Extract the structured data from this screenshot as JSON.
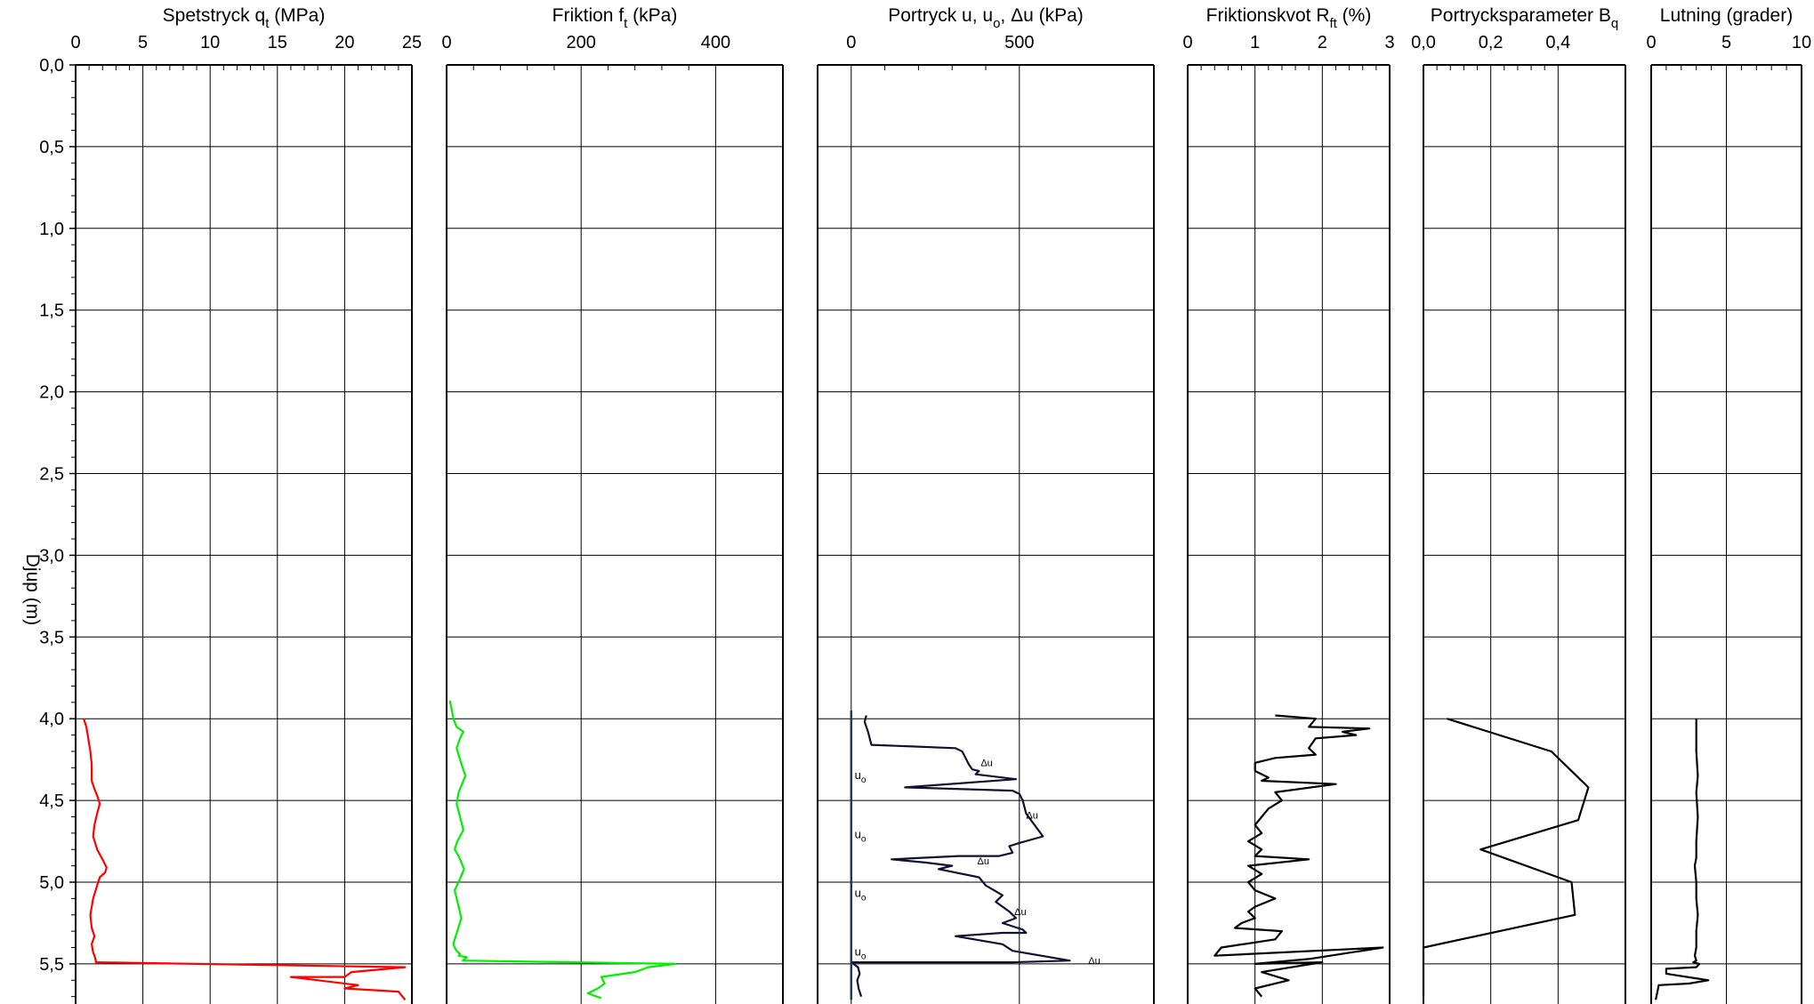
{
  "depth_axis": {
    "label": "Djup (m)",
    "ylim": [
      0,
      5.72
    ],
    "ticks": [
      "0,0",
      "0,5",
      "1,0",
      "1,5",
      "2,0",
      "2,5",
      "3,0",
      "3,5",
      "4,0",
      "4,5",
      "5,0",
      "5,5"
    ]
  },
  "chart_data": [
    {
      "type": "line",
      "title": "Spetstryck qt (MPa)",
      "title_main": "Spetstryck q",
      "title_sub": "t",
      "title_tail": "  (MPa)",
      "xlim": [
        0,
        25
      ],
      "xticks": [
        "0",
        "5",
        "10",
        "15",
        "20",
        "25"
      ],
      "color": "#ff0000",
      "grid": true,
      "series": [
        {
          "x": [
            0.6,
            0.8,
            0.9,
            1.1,
            1.2,
            1.2,
            1.4,
            1.6,
            1.8,
            1.6,
            1.4,
            1.3,
            1.6,
            2.0,
            2.3,
            2.2,
            1.8,
            1.6,
            1.3,
            1.1,
            1.2,
            1.4,
            1.2,
            1.3,
            1.4,
            1.5,
            1.5,
            24.5,
            20.5,
            20.0,
            16.0,
            18.0,
            21.0,
            20.0,
            24.0,
            24.5
          ],
          "y": [
            4.0,
            4.05,
            4.1,
            4.2,
            4.28,
            4.38,
            4.43,
            4.47,
            4.52,
            4.58,
            4.65,
            4.72,
            4.8,
            4.86,
            4.91,
            4.94,
            4.97,
            5.02,
            5.1,
            5.2,
            5.28,
            5.33,
            5.38,
            5.43,
            5.45,
            5.48,
            5.49,
            5.52,
            5.55,
            5.58,
            5.58,
            5.6,
            5.63,
            5.65,
            5.67,
            5.72
          ]
        }
      ]
    },
    {
      "type": "line",
      "title": "Friktion ft (kPa)",
      "title_main": "Friktion f",
      "title_sub": "t",
      "title_tail": "  (kPa)",
      "xlim": [
        0,
        500
      ],
      "xticks": [
        "0",
        "200",
        "400"
      ],
      "color": "#00ee00",
      "grid": true,
      "series": [
        {
          "x": [
            5,
            8,
            10,
            15,
            25,
            20,
            15,
            20,
            28,
            18,
            15,
            20,
            25,
            16,
            12,
            18,
            22,
            26,
            20,
            12,
            18,
            22,
            16,
            12,
            10,
            12,
            15,
            20,
            18,
            30,
            24,
            340,
            300,
            280,
            230,
            235,
            225,
            210,
            230
          ],
          "y": [
            3.89,
            3.95,
            4.0,
            4.05,
            4.08,
            4.12,
            4.18,
            4.25,
            4.35,
            4.45,
            4.52,
            4.6,
            4.68,
            4.75,
            4.8,
            4.84,
            4.88,
            4.92,
            4.98,
            5.05,
            5.15,
            5.22,
            5.3,
            5.35,
            5.38,
            5.4,
            5.42,
            5.44,
            5.45,
            5.46,
            5.48,
            5.5,
            5.52,
            5.55,
            5.58,
            5.62,
            5.65,
            5.68,
            5.71
          ]
        }
      ]
    },
    {
      "type": "line",
      "title": "Portryck u, uo, Δu (kPa)",
      "title_main": "Portryck u, u",
      "title_sub": "o",
      "title_tail": ", Δu  (kPa)",
      "xlim": [
        -100,
        900
      ],
      "xticks": [
        "0",
        "500"
      ],
      "xtick_values": [
        0,
        500
      ],
      "color": "#101030",
      "grid": true,
      "annotations": [
        {
          "text": "uo",
          "main": "u",
          "sub": "o",
          "x": 10,
          "y": 4.37
        },
        {
          "text": "uo",
          "main": "u",
          "sub": "o",
          "x": 10,
          "y": 4.73
        },
        {
          "text": "uo",
          "main": "u",
          "sub": "o",
          "x": 10,
          "y": 5.09
        },
        {
          "text": "uo",
          "main": "u",
          "sub": "o",
          "x": 10,
          "y": 5.45
        },
        {
          "text": "Δu",
          "x": 385,
          "y": 4.29
        },
        {
          "text": "Δu",
          "x": 520,
          "y": 4.61
        },
        {
          "text": "Δu",
          "x": 375,
          "y": 4.89
        },
        {
          "text": "Δu",
          "x": 485,
          "y": 5.2
        },
        {
          "text": "Δu",
          "x": 705,
          "y": 5.5
        }
      ],
      "series": [
        {
          "name": "u",
          "x": [
            45,
            40,
            50,
            55,
            60,
            310,
            330,
            340,
            350,
            360,
            380,
            370,
            490,
            160,
            480,
            500,
            510,
            520,
            570,
            500,
            470,
            480,
            440,
            320,
            120,
            220,
            300,
            260,
            380,
            400,
            450,
            430,
            470,
            490,
            450,
            510,
            520,
            450,
            310,
            450,
            480,
            650,
            480,
            0,
            20,
            25,
            18,
            22,
            30
          ],
          "y": [
            3.98,
            4.02,
            4.08,
            4.12,
            4.16,
            4.18,
            4.2,
            4.24,
            4.28,
            4.31,
            4.32,
            4.34,
            4.37,
            4.42,
            4.44,
            4.46,
            4.5,
            4.58,
            4.72,
            4.76,
            4.78,
            4.82,
            4.84,
            4.84,
            4.86,
            4.88,
            4.9,
            4.92,
            4.97,
            5.02,
            5.08,
            5.12,
            5.18,
            5.22,
            5.25,
            5.29,
            5.31,
            5.31,
            5.33,
            5.38,
            5.42,
            5.48,
            5.49,
            5.49,
            5.52,
            5.56,
            5.6,
            5.65,
            5.7
          ]
        },
        {
          "name": "uo",
          "x": [
            0,
            0
          ],
          "y": [
            3.95,
            5.72
          ]
        }
      ]
    },
    {
      "type": "line",
      "title": "Friktionskvot Rft (%)",
      "title_main": "Friktionskvot R",
      "title_sub": "ft",
      "title_tail": "  (%)",
      "xlim": [
        0,
        3
      ],
      "xticks": [
        "0",
        "1",
        "2",
        "3"
      ],
      "color": "#000000",
      "grid": true,
      "series": [
        {
          "x": [
            1.3,
            1.9,
            1.8,
            2.7,
            2.3,
            2.5,
            1.9,
            1.8,
            1.9,
            1.3,
            1.0,
            1.0,
            1.2,
            1.1,
            2.2,
            1.3,
            1.4,
            1.2,
            1.1,
            1.0,
            1.1,
            0.9,
            1.1,
            1.0,
            1.8,
            0.9,
            1.1,
            0.9,
            1.0,
            1.3,
            1.0,
            0.9,
            1.0,
            0.8,
            0.7,
            1.4,
            1.3,
            0.5,
            0.4,
            2.9,
            1.8,
            1.0,
            2.0,
            1.1,
            1.5,
            1.0,
            1.1
          ],
          "y": [
            3.98,
            4.0,
            4.05,
            4.06,
            4.08,
            4.1,
            4.12,
            4.18,
            4.22,
            4.24,
            4.27,
            4.32,
            4.36,
            4.38,
            4.4,
            4.45,
            4.5,
            4.55,
            4.6,
            4.65,
            4.7,
            4.75,
            4.8,
            4.84,
            4.86,
            4.9,
            4.95,
            5.0,
            5.05,
            5.1,
            5.15,
            5.18,
            5.22,
            5.25,
            5.28,
            5.3,
            5.35,
            5.4,
            5.45,
            5.4,
            5.47,
            5.5,
            5.49,
            5.55,
            5.6,
            5.65,
            5.7
          ]
        }
      ]
    },
    {
      "type": "line",
      "title": "Portrycksparameter Bq",
      "title_main": "Portrycksparameter B",
      "title_sub": "q",
      "title_tail": "",
      "xlim": [
        0,
        0.6
      ],
      "xticks": [
        "0,0",
        "0,2",
        "0,4"
      ],
      "color": "#000000",
      "grid": true,
      "series": [
        {
          "x": [
            0.07,
            0.38,
            0.49,
            0.46,
            0.17,
            0.44,
            0.45,
            0.0,
            0.0
          ],
          "y": [
            4.0,
            4.2,
            4.42,
            4.62,
            4.8,
            5.0,
            5.2,
            5.4,
            5.7
          ]
        }
      ]
    },
    {
      "type": "line",
      "title": "Lutning (grader)",
      "title_main": "Lutning (grader)",
      "title_sub": "",
      "title_tail": "",
      "xlim": [
        0,
        10
      ],
      "xticks": [
        "0",
        "5",
        "10"
      ],
      "color": "#000000",
      "grid": true,
      "series": [
        {
          "x": [
            3.0,
            3.0,
            3.1,
            3.0,
            3.1,
            3.0,
            3.0,
            2.9,
            3.0,
            3.0,
            3.1,
            3.0,
            3.0,
            3.0,
            2.9,
            3.0,
            2.8,
            3.2,
            3.0,
            1.0,
            1.0,
            3.8,
            2.5,
            0.5,
            0.3
          ],
          "y": [
            4.0,
            4.2,
            4.35,
            4.45,
            4.6,
            4.75,
            4.85,
            4.9,
            5.0,
            5.1,
            5.2,
            5.3,
            5.38,
            5.4,
            5.45,
            5.48,
            5.49,
            5.5,
            5.52,
            5.53,
            5.56,
            5.6,
            5.62,
            5.63,
            5.72
          ]
        }
      ]
    }
  ]
}
